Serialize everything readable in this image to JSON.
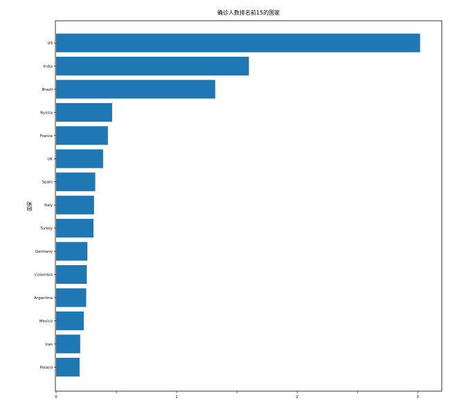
{
  "chart_data": {
    "type": "bar",
    "orientation": "horizontal",
    "title": "确诊人数排名前15的国家",
    "ylabel": "国家",
    "xlabel": "",
    "categories": [
      "US",
      "India",
      "Brazil",
      "Russia",
      "France",
      "UK",
      "Spain",
      "Italy",
      "Turkey",
      "Germany",
      "Colombia",
      "Argentina",
      "Mexico",
      "Iran",
      "Poland"
    ],
    "values": [
      3.02,
      1.6,
      1.32,
      0.465,
      0.43,
      0.39,
      0.325,
      0.315,
      0.31,
      0.26,
      0.255,
      0.25,
      0.23,
      0.2,
      0.195
    ],
    "xlim": [
      0,
      3.2
    ],
    "xticks": [
      0,
      0.5,
      1,
      1.5,
      2,
      2.5,
      3
    ],
    "xtick_labels": [
      "0",
      "",
      "1",
      "",
      "2",
      "",
      "3"
    ],
    "grid": false,
    "colors": {
      "bar": "#1f77b4",
      "axis": "#000000",
      "text": "#000000"
    }
  }
}
